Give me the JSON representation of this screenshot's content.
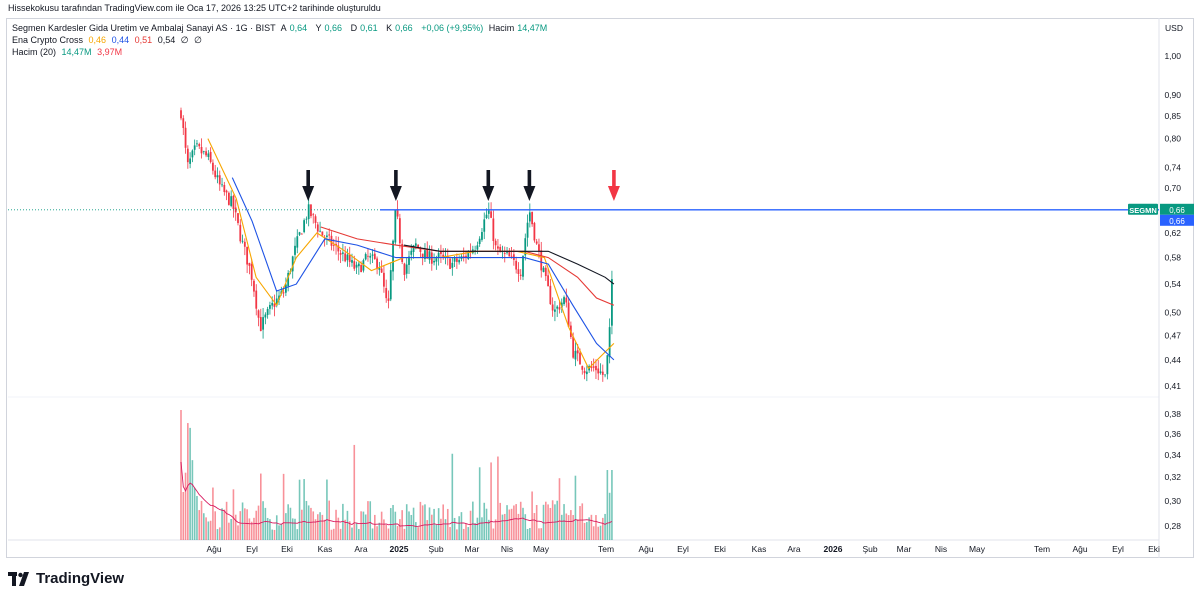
{
  "credit": "Hissekokusu tarafından TradingView.com ile Oca 17, 2026 13:25 UTC+2 tarihinde oluşturuldu",
  "legend": {
    "symbol": "Segmen Kardesler Gida Uretim ve Ambalaj Sanayi AS · 1G · BIST",
    "open_label": "A",
    "open": "0,64",
    "high_label": "Y",
    "high": "0,66",
    "low_label": "D",
    "low": "0,61",
    "close_label": "K",
    "close": "0,66",
    "change": "+0,06 (+9,95%)",
    "volume_label": "Hacim",
    "volume": "14,47M",
    "indicator_name": "Ena Crypto Cross",
    "ind_v1": "0,46",
    "ind_v2": "0,44",
    "ind_v3": "0,51",
    "ind_v4": "0,54",
    "ind_v5": "∅",
    "ind_v6": "∅",
    "vol_name": "Hacim (20)",
    "vol_v1": "14,47M",
    "vol_v2": "3,97M"
  },
  "brand": "TradingView",
  "colors": {
    "up": "#089981",
    "down": "#f23645",
    "resistance": "#2962ff",
    "ma_orange": "#f7a600",
    "ma_blue": "#1e53e5",
    "ma_red": "#e53935",
    "ma_black": "#131722"
  },
  "chart_data": {
    "type": "candlestick",
    "currency": "USD",
    "price_scale": "log",
    "y_ticks": [
      "1,00",
      "0,90",
      "0,85",
      "0,80",
      "0,74",
      "0,70",
      "0,62",
      "0,58",
      "0,54",
      "0,50",
      "0,47",
      "0,44",
      "0,41",
      "0,38",
      "0,36",
      "0,34",
      "0,32",
      "0,30",
      "0,28"
    ],
    "x_ticks": [
      "Ağu",
      "Eyl",
      "Eki",
      "Kas",
      "Ara",
      "2025",
      "Şub",
      "Mar",
      "Nis",
      "May",
      "Tem",
      "Ağu",
      "Eyl",
      "Eki",
      "Kas",
      "Ara",
      "2026",
      "Şub",
      "Mar",
      "Nis",
      "May",
      "Tem",
      "Ağu",
      "Eyl",
      "Eki"
    ],
    "last_price_label": "SEGMN",
    "last_price": "0,66",
    "resistance_level": 0.66,
    "close_path": [
      {
        "date": "2024-07-17",
        "value": 0.86
      },
      {
        "date": "2024-07-25",
        "value": 0.74
      },
      {
        "date": "2024-08-05",
        "value": 0.78
      },
      {
        "date": "2024-08-20",
        "value": 0.76
      },
      {
        "date": "2024-09-05",
        "value": 0.7
      },
      {
        "date": "2024-09-20",
        "value": 0.67
      },
      {
        "date": "2024-10-01",
        "value": 0.61
      },
      {
        "date": "2024-10-15",
        "value": 0.55
      },
      {
        "date": "2024-10-25",
        "value": 0.48
      },
      {
        "date": "2024-11-10",
        "value": 0.51
      },
      {
        "date": "2024-11-25",
        "value": 0.53
      },
      {
        "date": "2024-12-10",
        "value": 0.6
      },
      {
        "date": "2024-12-25",
        "value": 0.66
      },
      {
        "date": "2025-01-10",
        "value": 0.62
      },
      {
        "date": "2025-01-25",
        "value": 0.6
      },
      {
        "date": "2025-02-10",
        "value": 0.58
      },
      {
        "date": "2025-02-25",
        "value": 0.56
      },
      {
        "date": "2025-03-10",
        "value": 0.58
      },
      {
        "date": "2025-03-25",
        "value": 0.57
      },
      {
        "date": "2025-04-05",
        "value": 0.5
      },
      {
        "date": "2025-04-15",
        "value": 0.66
      },
      {
        "date": "2025-04-25",
        "value": 0.56
      },
      {
        "date": "2025-05-10",
        "value": 0.6
      },
      {
        "date": "2025-05-25",
        "value": 0.58
      },
      {
        "date": "2025-06-10",
        "value": 0.58
      },
      {
        "date": "2025-06-25",
        "value": 0.57
      },
      {
        "date": "2025-07-10",
        "value": 0.58
      },
      {
        "date": "2025-07-25",
        "value": 0.6
      },
      {
        "date": "2025-08-10",
        "value": 0.66
      },
      {
        "date": "2025-08-20",
        "value": 0.59
      },
      {
        "date": "2025-09-05",
        "value": 0.58
      },
      {
        "date": "2025-09-20",
        "value": 0.56
      },
      {
        "date": "2025-10-01",
        "value": 0.66
      },
      {
        "date": "2025-10-10",
        "value": 0.6
      },
      {
        "date": "2025-10-20",
        "value": 0.55
      },
      {
        "date": "2025-11-01",
        "value": 0.5
      },
      {
        "date": "2025-11-15",
        "value": 0.52
      },
      {
        "date": "2025-11-25",
        "value": 0.45
      },
      {
        "date": "2025-12-10",
        "value": 0.43
      },
      {
        "date": "2025-12-25",
        "value": 0.43
      },
      {
        "date": "2026-01-05",
        "value": 0.42
      },
      {
        "date": "2026-01-10",
        "value": 0.46
      },
      {
        "date": "2026-01-13",
        "value": 0.53
      },
      {
        "date": "2026-01-15",
        "value": 0.6
      },
      {
        "date": "2026-01-16",
        "value": 0.66
      }
    ],
    "moving_averages": [
      {
        "color": "orange",
        "points": [
          {
            "date": "2024-08-20",
            "value": 0.8
          },
          {
            "date": "2024-09-25",
            "value": 0.68
          },
          {
            "date": "2024-10-20",
            "value": 0.55
          },
          {
            "date": "2024-11-15",
            "value": 0.51
          },
          {
            "date": "2024-12-10",
            "value": 0.58
          },
          {
            "date": "2025-01-05",
            "value": 0.62
          },
          {
            "date": "2025-02-10",
            "value": 0.59
          },
          {
            "date": "2025-03-15",
            "value": 0.56
          },
          {
            "date": "2025-04-25",
            "value": 0.58
          },
          {
            "date": "2025-06-10",
            "value": 0.58
          },
          {
            "date": "2025-07-25",
            "value": 0.59
          },
          {
            "date": "2025-09-15",
            "value": 0.59
          },
          {
            "date": "2025-10-20",
            "value": 0.58
          },
          {
            "date": "2025-11-20",
            "value": 0.48
          },
          {
            "date": "2025-12-15",
            "value": 0.43
          },
          {
            "date": "2026-01-16",
            "value": 0.46
          }
        ]
      },
      {
        "color": "blue",
        "points": [
          {
            "date": "2024-09-20",
            "value": 0.72
          },
          {
            "date": "2024-10-15",
            "value": 0.64
          },
          {
            "date": "2024-11-15",
            "value": 0.53
          },
          {
            "date": "2024-12-10",
            "value": 0.54
          },
          {
            "date": "2025-01-15",
            "value": 0.61
          },
          {
            "date": "2025-02-25",
            "value": 0.6
          },
          {
            "date": "2025-04-15",
            "value": 0.58
          },
          {
            "date": "2025-06-20",
            "value": 0.58
          },
          {
            "date": "2025-08-25",
            "value": 0.58
          },
          {
            "date": "2025-09-25",
            "value": 0.58
          },
          {
            "date": "2025-10-25",
            "value": 0.57
          },
          {
            "date": "2025-11-25",
            "value": 0.51
          },
          {
            "date": "2025-12-25",
            "value": 0.46
          },
          {
            "date": "2026-01-16",
            "value": 0.44
          }
        ]
      },
      {
        "color": "red",
        "points": [
          {
            "date": "2025-01-10",
            "value": 0.63
          },
          {
            "date": "2025-02-25",
            "value": 0.61
          },
          {
            "date": "2025-04-15",
            "value": 0.6
          },
          {
            "date": "2025-06-10",
            "value": 0.59
          },
          {
            "date": "2025-08-10",
            "value": 0.59
          },
          {
            "date": "2025-09-25",
            "value": 0.59
          },
          {
            "date": "2025-10-25",
            "value": 0.58
          },
          {
            "date": "2025-12-01",
            "value": 0.55
          },
          {
            "date": "2025-12-25",
            "value": 0.52
          },
          {
            "date": "2026-01-16",
            "value": 0.51
          }
        ]
      },
      {
        "color": "black",
        "points": [
          {
            "date": "2025-04-25",
            "value": 0.6
          },
          {
            "date": "2025-06-10",
            "value": 0.59
          },
          {
            "date": "2025-08-10",
            "value": 0.59
          },
          {
            "date": "2025-09-25",
            "value": 0.59
          },
          {
            "date": "2025-10-25",
            "value": 0.59
          },
          {
            "date": "2025-12-01",
            "value": 0.57
          },
          {
            "date": "2026-01-05",
            "value": 0.55
          },
          {
            "date": "2026-01-16",
            "value": 0.54
          }
        ]
      }
    ],
    "resistance_touches": [
      "2024-12-25",
      "2025-04-15",
      "2025-08-10",
      "2025-10-01"
    ],
    "breakout_marker": "2026-01-16"
  }
}
